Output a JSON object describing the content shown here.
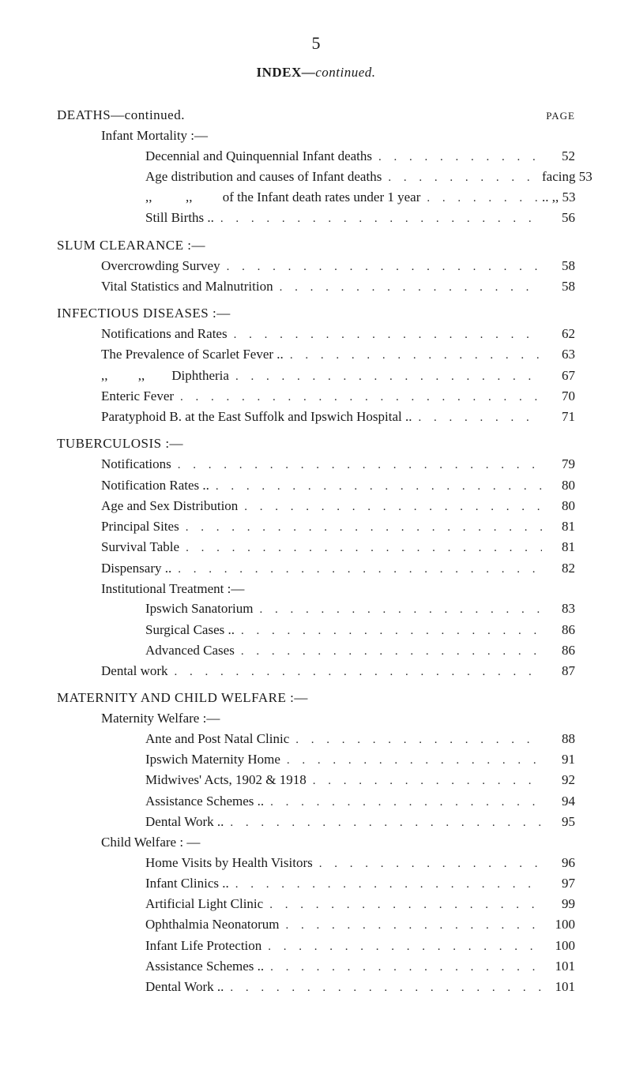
{
  "pageNumber": "5",
  "indexTitle": "INDEX—",
  "indexTitleCont": "continued.",
  "pageColHeader": "PAGE",
  "dotFill": ". . . . . . . . . . . . . . . . . . . . . . . . . . . . . . . . . . . . . . . . . . . . . . . .",
  "deathsHeading": "DEATHS—continued.",
  "deaths": {
    "sub1": "Infant Mortality :—",
    "items": [
      {
        "label": "Decennial and Quinquennial Infant deaths",
        "page": "52",
        "indent": 2
      },
      {
        "label": "Age distribution and causes of Infant deaths",
        "page": "facing 53",
        "indent": 2
      },
      {
        "label": ",,          ,,         of the Infant death rates under 1 year",
        "page": ".. ,,  53",
        "indent": 2
      },
      {
        "label": "Still Births ..",
        "page": "56",
        "indent": 2
      }
    ]
  },
  "slumHeading": "SLUM CLEARANCE :—",
  "slum": [
    {
      "label": "Overcrowding Survey",
      "page": "58",
      "indent": 1
    },
    {
      "label": "Vital Statistics and Malnutrition",
      "page": "58",
      "indent": 1
    }
  ],
  "infHeading": "INFECTIOUS DISEASES :—",
  "inf": [
    {
      "label": "Notifications and Rates",
      "page": "62",
      "indent": 1
    },
    {
      "label": "The Prevalence of Scarlet Fever ..",
      "page": "63",
      "indent": 1
    },
    {
      "label": ",,         ,,        Diphtheria",
      "page": "67",
      "indent": 1
    },
    {
      "label": "Enteric Fever",
      "page": "70",
      "indent": 1
    },
    {
      "label": "Paratyphoid B. at the East Suffolk and Ipswich Hospital ..",
      "page": "71",
      "indent": 1
    }
  ],
  "tbHeading": "TUBERCULOSIS :—",
  "tb": [
    {
      "label": "Notifications",
      "page": "79",
      "indent": 1
    },
    {
      "label": "Notification Rates ..",
      "page": "80",
      "indent": 1
    },
    {
      "label": "Age and Sex Distribution",
      "page": "80",
      "indent": 1
    },
    {
      "label": "Principal Sites",
      "page": "81",
      "indent": 1
    },
    {
      "label": "Survival Table",
      "page": "81",
      "indent": 1
    },
    {
      "label": "Dispensary ..",
      "page": "82",
      "indent": 1
    },
    {
      "label": "Institutional Treatment :—",
      "page": "",
      "indent": 1
    },
    {
      "label": "Ipswich Sanatorium",
      "page": "83",
      "indent": 2
    },
    {
      "label": "Surgical Cases ..",
      "page": "86",
      "indent": 2
    },
    {
      "label": "Advanced Cases",
      "page": "86",
      "indent": 2
    },
    {
      "label": "Dental work",
      "page": "87",
      "indent": 1
    }
  ],
  "matHeading": "MATERNITY AND CHILD WELFARE :—",
  "matSub1": "Maternity Welfare :—",
  "mat1": [
    {
      "label": "Ante and Post Natal Clinic",
      "page": "88",
      "indent": 2
    },
    {
      "label": "Ipswich Maternity Home",
      "page": "91",
      "indent": 2
    },
    {
      "label": "Midwives' Acts, 1902 & 1918",
      "page": "92",
      "indent": 2
    },
    {
      "label": "Assistance Schemes ..",
      "page": "94",
      "indent": 2
    },
    {
      "label": "Dental Work ..",
      "page": "95",
      "indent": 2
    }
  ],
  "matSub2": "Child Welfare : —",
  "mat2": [
    {
      "label": "Home Visits by Health Visitors",
      "page": "96",
      "indent": 2
    },
    {
      "label": "Infant Clinics ..",
      "page": "97",
      "indent": 2
    },
    {
      "label": "Artificial Light Clinic",
      "page": "99",
      "indent": 2
    },
    {
      "label": "Ophthalmia Neonatorum",
      "page": "100",
      "indent": 2
    },
    {
      "label": "Infant Life Protection",
      "page": "100",
      "indent": 2
    },
    {
      "label": "Assistance Schemes ..",
      "page": "101",
      "indent": 2
    },
    {
      "label": "Dental Work ..",
      "page": "101",
      "indent": 2
    }
  ]
}
